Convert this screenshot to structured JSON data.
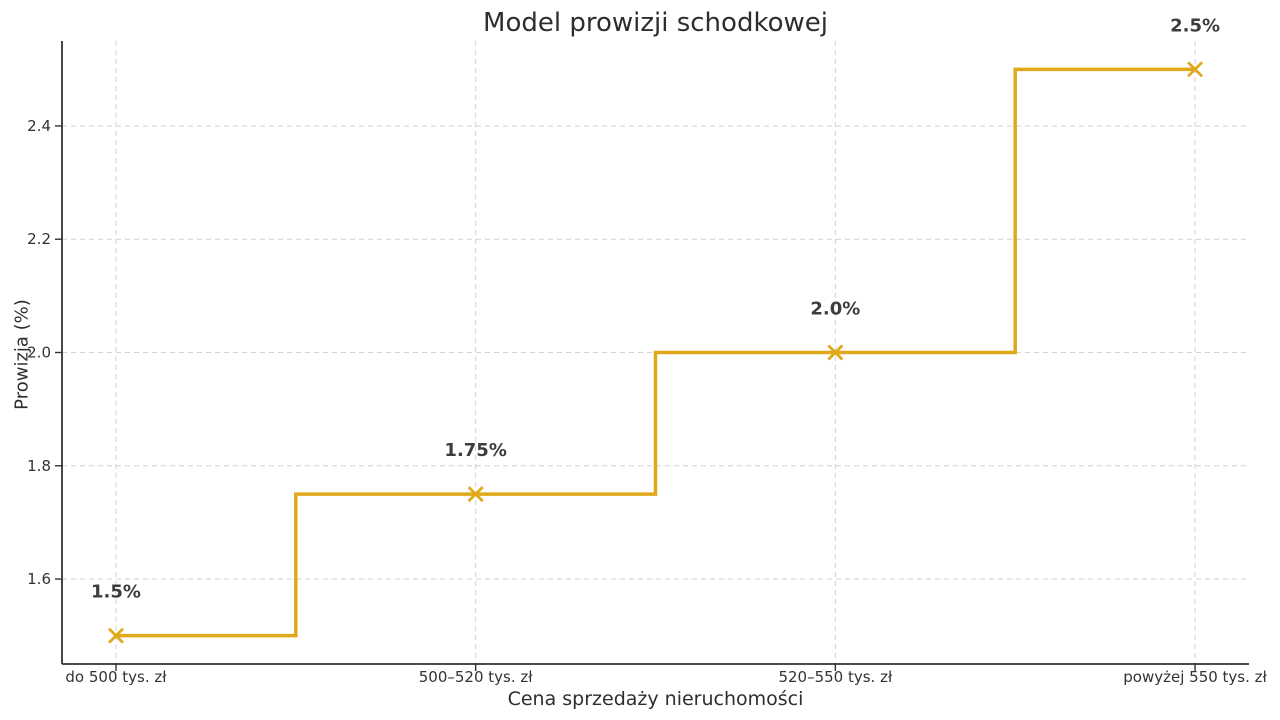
{
  "figure": {
    "background": "#ffffff"
  },
  "chart_data": {
    "type": "step",
    "title": "Model prowizji schodkowej",
    "xlabel": "Cena sprzedaży nieruchomości",
    "ylabel": "Prowizja (%)",
    "categories": [
      "do 500 tys. zł",
      "500–520 tys. zł",
      "520–550 tys. zł",
      "powyżej 550 tys. zł"
    ],
    "values": [
      1.5,
      1.75,
      2.0,
      2.5
    ],
    "point_labels": [
      "1.5%",
      "1.75%",
      "2.0%",
      "2.5%"
    ],
    "step_style": "mid",
    "marker": "x",
    "yticks": [
      1.6,
      1.8,
      2.0,
      2.2,
      2.4
    ],
    "ytick_labels": [
      "1.6",
      "1.8",
      "2.0",
      "2.2",
      "2.4"
    ],
    "ylim": [
      1.45,
      2.55
    ],
    "xlim": [
      -0.15,
      3.15
    ],
    "grid": true,
    "grid_style": "dashed",
    "legend": false,
    "colors": {
      "line": "#E0A81A",
      "marker": "#E0A81A",
      "annotation": "#3d3d3d",
      "tick_label": "#333333",
      "axis": "#333333",
      "grid": "#d2d2d2",
      "background": "#ffffff"
    }
  }
}
